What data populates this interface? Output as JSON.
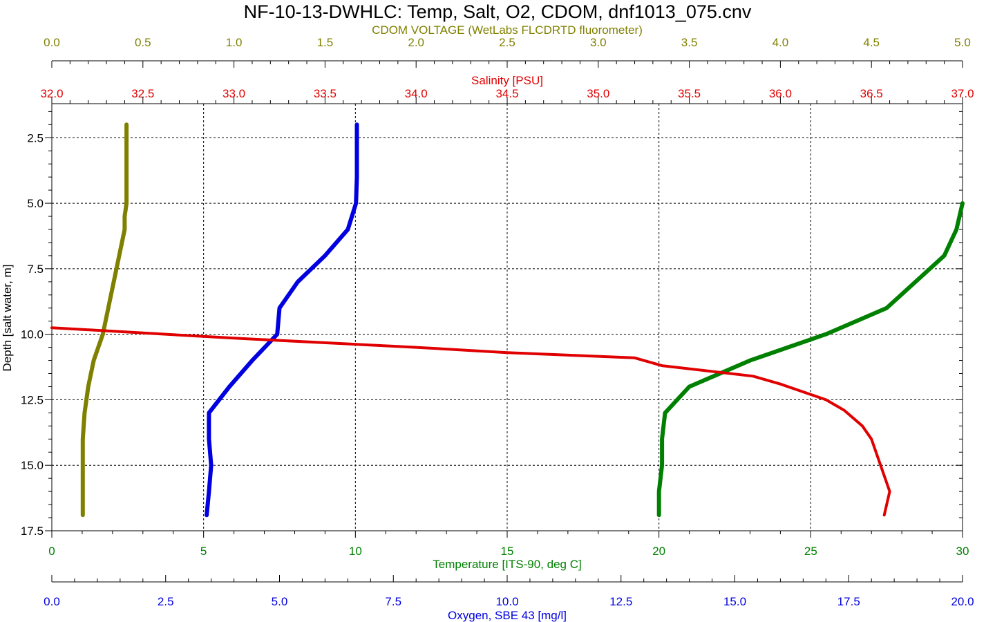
{
  "chart_data": {
    "type": "line",
    "title": "NF-10-13-DWHLC: Temp, Salt, O2, CDOM, dnf1013_075.cnv",
    "y_axis": {
      "label": "Depth [salt water, m]",
      "range": [
        1.2,
        17.5
      ],
      "inverted": true,
      "ticks": [
        "2.5",
        "5.0",
        "7.5",
        "10.0",
        "12.5",
        "15.0",
        "17.5"
      ],
      "tick_values": [
        2.5,
        5.0,
        7.5,
        10.0,
        12.5,
        15.0,
        17.5
      ]
    },
    "x_axes": {
      "cdom": {
        "label": "CDOM VOLTAGE (WetLabs FLCDRTD fluorometer)",
        "color": "#808000",
        "range": [
          0.0,
          5.0
        ],
        "ticks": [
          "0.0",
          "0.5",
          "1.0",
          "1.5",
          "2.0",
          "2.5",
          "3.0",
          "3.5",
          "4.0",
          "4.5",
          "5.0"
        ],
        "tick_values": [
          0,
          0.5,
          1,
          1.5,
          2,
          2.5,
          3,
          3.5,
          4,
          4.5,
          5
        ]
      },
      "salinity": {
        "label": "Salinity [PSU]",
        "color": "#e00000",
        "range": [
          32.0,
          37.0
        ],
        "ticks": [
          "32.0",
          "32.5",
          "33.0",
          "33.5",
          "34.0",
          "34.5",
          "35.0",
          "35.5",
          "36.0",
          "36.5",
          "37.0"
        ],
        "tick_values": [
          32,
          32.5,
          33,
          33.5,
          34,
          34.5,
          35,
          35.5,
          36,
          36.5,
          37
        ]
      },
      "temperature": {
        "label": "Temperature [ITS-90, deg C]",
        "color": "#008000",
        "range": [
          0,
          30
        ],
        "ticks": [
          "0",
          "5",
          "10",
          "15",
          "20",
          "25",
          "30"
        ],
        "tick_values": [
          0,
          5,
          10,
          15,
          20,
          25,
          30
        ]
      },
      "oxygen": {
        "label": "Oxygen, SBE 43 [mg/l]",
        "color": "#0000e0",
        "range": [
          0.0,
          20.0
        ],
        "ticks": [
          "0.0",
          "2.5",
          "5.0",
          "7.5",
          "10.0",
          "12.5",
          "15.0",
          "17.5",
          "20.0"
        ],
        "tick_values": [
          0,
          2.5,
          5,
          7.5,
          10,
          12.5,
          15,
          17.5,
          20
        ]
      }
    },
    "grid": true,
    "series": [
      {
        "axis": "cdom",
        "color": "#808000",
        "points": [
          [
            0.41,
            2.0
          ],
          [
            0.41,
            3.0
          ],
          [
            0.41,
            4.0
          ],
          [
            0.41,
            5.0
          ],
          [
            0.4,
            5.5
          ],
          [
            0.4,
            6.0
          ],
          [
            0.37,
            7.0
          ],
          [
            0.34,
            8.0
          ],
          [
            0.31,
            9.0
          ],
          [
            0.28,
            10.0
          ],
          [
            0.23,
            11.0
          ],
          [
            0.2,
            12.0
          ],
          [
            0.18,
            13.0
          ],
          [
            0.17,
            14.0
          ],
          [
            0.17,
            15.0
          ],
          [
            0.17,
            16.0
          ],
          [
            0.17,
            16.9
          ]
        ]
      },
      {
        "axis": "oxygen",
        "color": "#0000e0",
        "points": [
          [
            6.7,
            2.0
          ],
          [
            6.7,
            3.0
          ],
          [
            6.7,
            4.0
          ],
          [
            6.68,
            5.0
          ],
          [
            6.5,
            6.0
          ],
          [
            6.0,
            7.0
          ],
          [
            5.4,
            8.0
          ],
          [
            5.0,
            9.0
          ],
          [
            4.95,
            10.0
          ],
          [
            4.4,
            11.0
          ],
          [
            3.9,
            12.0
          ],
          [
            3.45,
            13.0
          ],
          [
            3.45,
            14.0
          ],
          [
            3.5,
            15.0
          ],
          [
            3.45,
            16.0
          ],
          [
            3.4,
            16.9
          ]
        ]
      },
      {
        "axis": "temperature",
        "color": "#008000",
        "points": [
          [
            30.0,
            5.0
          ],
          [
            29.8,
            6.0
          ],
          [
            29.4,
            7.0
          ],
          [
            27.5,
            9.0
          ],
          [
            25.5,
            10.0
          ],
          [
            23.0,
            11.0
          ],
          [
            21.0,
            12.0
          ],
          [
            20.2,
            13.0
          ],
          [
            20.1,
            14.0
          ],
          [
            20.1,
            15.0
          ],
          [
            20.0,
            16.0
          ],
          [
            20.0,
            16.9
          ]
        ]
      },
      {
        "axis": "salinity",
        "color": "#e00000",
        "points": [
          [
            32.0,
            9.75
          ],
          [
            33.0,
            10.15
          ],
          [
            34.0,
            10.5
          ],
          [
            34.5,
            10.7
          ],
          [
            35.2,
            10.9
          ],
          [
            35.35,
            11.2
          ],
          [
            35.85,
            11.6
          ],
          [
            36.0,
            11.9
          ],
          [
            36.25,
            12.5
          ],
          [
            36.35,
            12.9
          ],
          [
            36.45,
            13.5
          ],
          [
            36.5,
            14.0
          ],
          [
            36.55,
            15.0
          ],
          [
            36.6,
            16.0
          ],
          [
            36.57,
            16.9
          ]
        ]
      }
    ]
  }
}
